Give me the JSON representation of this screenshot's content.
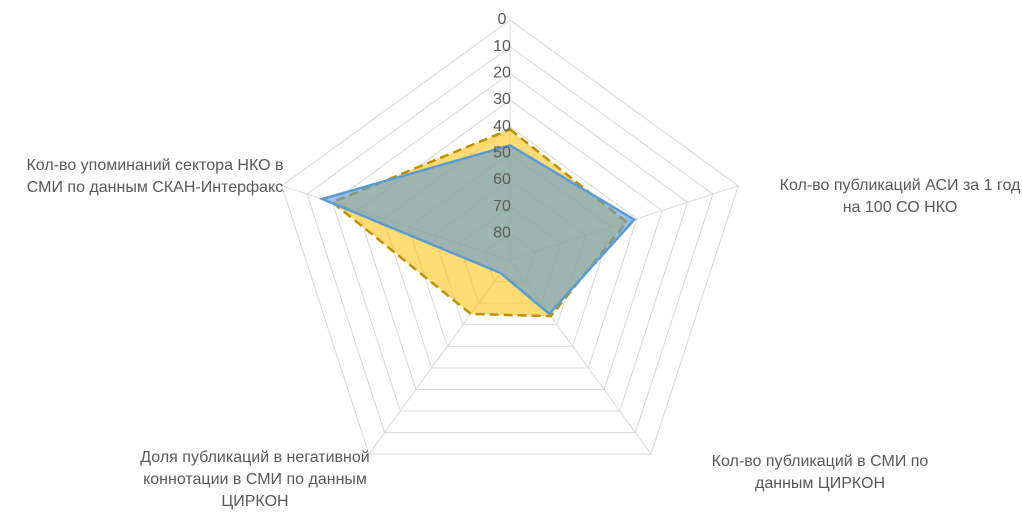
{
  "chart_data": {
    "type": "radar",
    "categories": [
      null,
      "Кол-во публикаций АСИ за 1 год на 100 СО НКО",
      "Кол-во публикаций в СМИ по данным ЦИРКОН",
      "Доля публикаций в негативной коннотации в СМИ по данным ЦИРКОН",
      "Кол-во упоминаний сектора НКО в СМИ по данным СКАН-Интерфакс"
    ],
    "series": [
      {
        "color": "#ffc000",
        "line_color": "#bf9000",
        "dashed": true,
        "values": [
          41,
          44,
          64,
          65,
          20
        ]
      },
      {
        "color": "#5b9bd5",
        "line_color": "#5b9bd5",
        "dashed": false,
        "values": [
          47,
          41,
          65,
          84,
          16
        ]
      }
    ],
    "ylim": [
      0,
      90
    ],
    "reversed": true,
    "yticks": [
      0,
      10,
      20,
      30,
      40,
      50,
      60,
      70,
      80
    ],
    "grid": true
  }
}
